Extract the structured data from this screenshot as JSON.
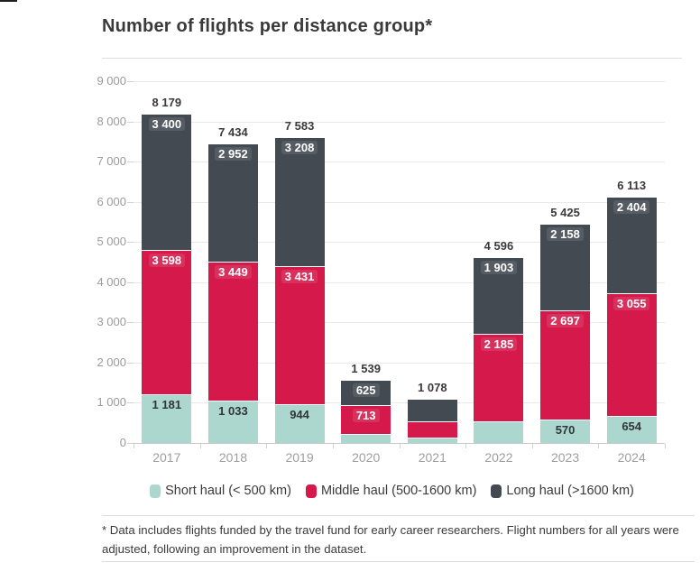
{
  "page": {
    "title": "Number of flights per distance group*",
    "footnote": "* Data includes flights funded by the travel fund for early career researchers. Flight numbers for all years were adjusted, following an improvement in the dataset."
  },
  "colors": {
    "short_haul": "#abd7cf",
    "middle_haul": "#d51a4b",
    "long_haul": "#434a52",
    "title_text": "#3a3a3a",
    "axis_text": "#9b9b9b",
    "gridline": "#e9e9e9",
    "divider": "#dddddd"
  },
  "legend": {
    "items": [
      {
        "label": "Short haul (< 500 km)",
        "color_key": "short_haul"
      },
      {
        "label": "Middle haul (500-1600 km)",
        "color_key": "middle_haul"
      },
      {
        "label": "Long haul (>1600 km)",
        "color_key": "long_haul"
      }
    ]
  },
  "chart_data": {
    "type": "bar",
    "stacked": true,
    "title": "Number of flights per distance group*",
    "categories": [
      "2017",
      "2018",
      "2019",
      "2020",
      "2021",
      "2022",
      "2023",
      "2024"
    ],
    "series": [
      {
        "name": "Short haul (< 500 km)",
        "color_key": "short_haul",
        "values": [
          1181,
          1033,
          944,
          201,
          110,
          508,
          570,
          654
        ],
        "labels": [
          "1 181",
          "1 033",
          "944",
          "",
          "",
          "",
          "570",
          "654"
        ]
      },
      {
        "name": "Middle haul (500-1600 km)",
        "color_key": "middle_haul",
        "values": [
          3598,
          3449,
          3431,
          713,
          400,
          2185,
          2697,
          3055
        ],
        "labels": [
          "3 598",
          "3 449",
          "3 431",
          "713",
          "",
          "2 185",
          "2 697",
          "3 055"
        ]
      },
      {
        "name": "Long haul (>1600 km)",
        "color_key": "long_haul",
        "values": [
          3400,
          2952,
          3208,
          625,
          568,
          1903,
          2158,
          2404
        ],
        "labels": [
          "3 400",
          "2 952",
          "3 208",
          "625",
          "",
          "1 903",
          "2 158",
          "2 404"
        ]
      }
    ],
    "totals": [
      8179,
      7434,
      7583,
      1539,
      1078,
      4596,
      5425,
      6113
    ],
    "total_labels": [
      "8 179",
      "7 434",
      "7 583",
      "1 539",
      "1 078",
      "4 596",
      "5 425",
      "6 113"
    ],
    "ylim": [
      0,
      9000
    ],
    "ytick_step": 1000,
    "ytick_labels": [
      "0",
      "1 000",
      "2 000",
      "3 000",
      "4 000",
      "5 000",
      "6 000",
      "7 000",
      "8 000",
      "9 000"
    ],
    "xlabel": "",
    "ylabel": "",
    "grid": true,
    "legend_position": "bottom"
  }
}
